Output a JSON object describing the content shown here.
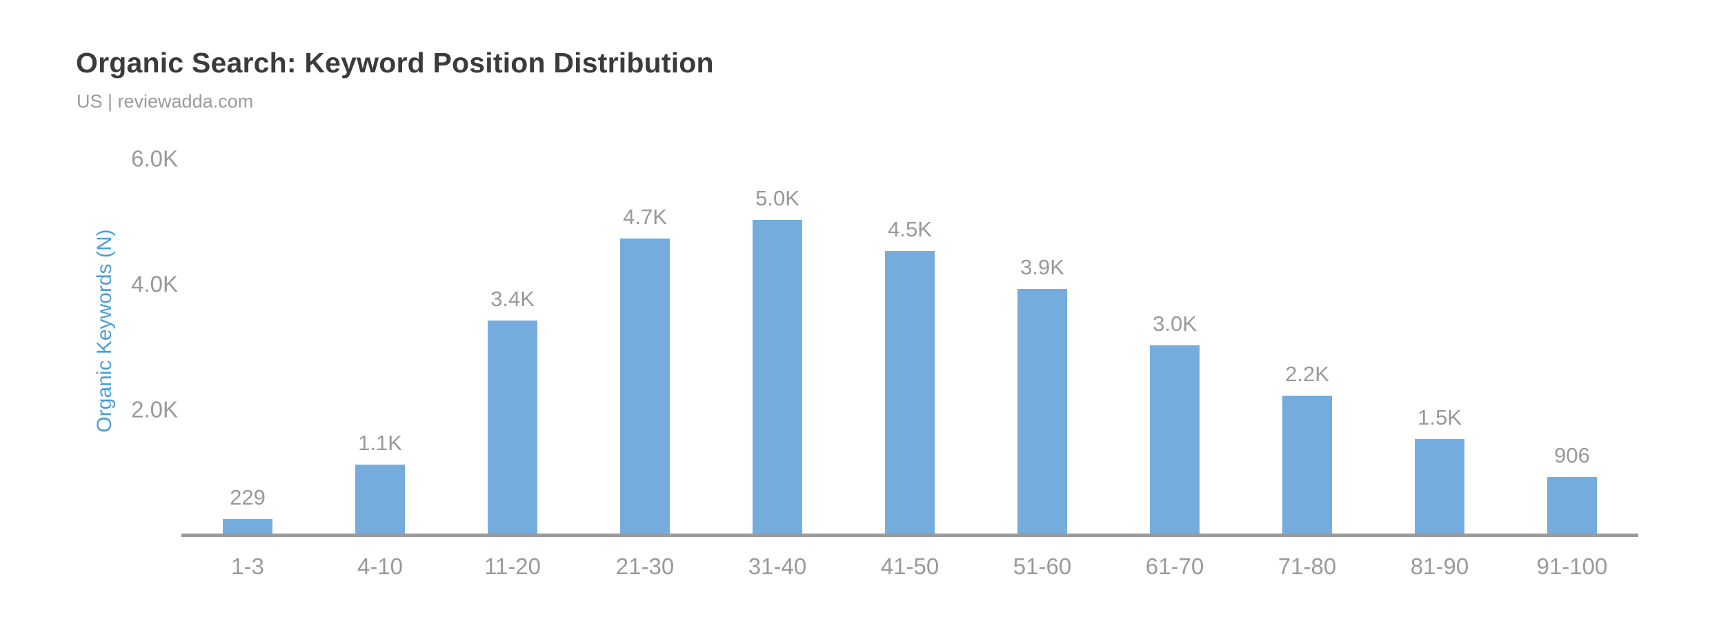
{
  "header": {
    "title": "Organic Search: Keyword Position Distribution",
    "subtitle": "US | reviewadda.com"
  },
  "chart_data": {
    "type": "bar",
    "title": "Organic Search: Keyword Position Distribution",
    "subtitle": "US | reviewadda.com",
    "categories": [
      "1-3",
      "4-10",
      "11-20",
      "21-30",
      "31-40",
      "41-50",
      "51-60",
      "61-70",
      "71-80",
      "81-90",
      "91-100"
    ],
    "values": [
      229,
      1100,
      3400,
      4700,
      5000,
      4500,
      3900,
      3000,
      2200,
      1500,
      906
    ],
    "value_labels": [
      "229",
      "1.1K",
      "3.4K",
      "4.7K",
      "5.0K",
      "4.5K",
      "3.9K",
      "3.0K",
      "2.2K",
      "1.5K",
      "906"
    ],
    "xlabel": "",
    "ylabel": "Organic Keywords (N)",
    "ylim": [
      0,
      6300
    ],
    "yticks": [
      {
        "value": 2000,
        "label": "2.0K"
      },
      {
        "value": 4000,
        "label": "4.0K"
      },
      {
        "value": 6000,
        "label": "6.0K"
      }
    ],
    "grid": false,
    "legend_position": "none",
    "colors": {
      "bar": "#74ADDD",
      "axis_line": "#9A9A9A",
      "tick_label": "#999999",
      "value_label": "#999999",
      "title": "#3B3B3B",
      "subtitle": "#9B9B9B",
      "ylabel": "#4A9ED9",
      "background": "#FFFFFF"
    }
  }
}
